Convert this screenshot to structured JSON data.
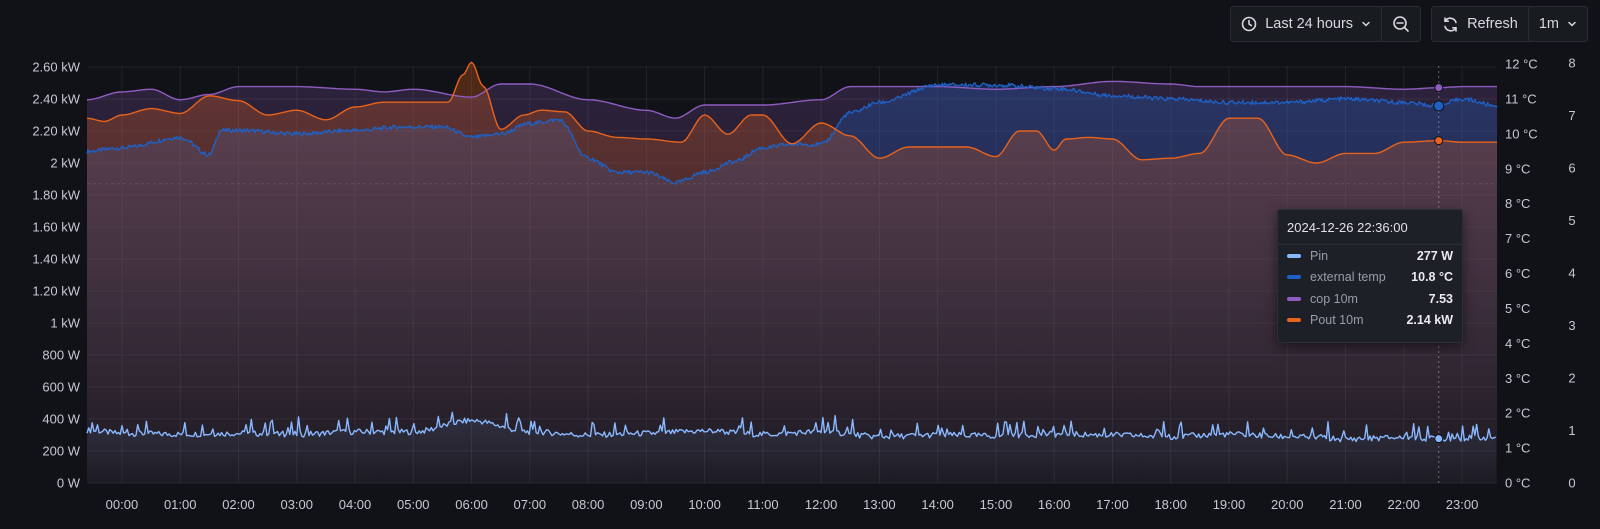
{
  "toolbar": {
    "time_range_label": "Last 24 hours",
    "refresh_label": "Refresh",
    "interval_label": "1m"
  },
  "tooltip": {
    "time": "2024-12-26 22:36:00",
    "rows": [
      {
        "name": "Pin",
        "value": "277 W",
        "color": "#8ab8ff"
      },
      {
        "name": "external temp",
        "value": "10.8 °C",
        "color": "#1f60c4"
      },
      {
        "name": "cop 10m",
        "value": "7.53",
        "color": "#8f5cc0"
      },
      {
        "name": "Pout 10m",
        "value": "2.14 kW",
        "color": "#e8631c"
      }
    ]
  },
  "chart_data": {
    "type": "line",
    "x_ticks": [
      "00:00",
      "01:00",
      "02:00",
      "03:00",
      "04:00",
      "05:00",
      "06:00",
      "07:00",
      "08:00",
      "09:00",
      "10:00",
      "11:00",
      "12:00",
      "13:00",
      "14:00",
      "15:00",
      "16:00",
      "17:00",
      "18:00",
      "19:00",
      "20:00",
      "21:00",
      "22:00",
      "23:00"
    ],
    "x_range_hours": [
      -0.6,
      23.6
    ],
    "y_left": {
      "unit": "W",
      "range": [
        0,
        2600
      ],
      "ticks": [
        "0 W",
        "200 W",
        "400 W",
        "600 W",
        "800 W",
        "1 kW",
        "1.20 kW",
        "1.40 kW",
        "1.60 kW",
        "1.80 kW",
        "2 kW",
        "2.20 kW",
        "2.40 kW",
        "2.60 kW"
      ]
    },
    "y_temp": {
      "unit": "°C",
      "range": [
        0,
        12
      ],
      "ticks": [
        "0 °C",
        "1 °C",
        "2 °C",
        "3 °C",
        "4 °C",
        "5 °C",
        "6 °C",
        "7 °C",
        "8 °C",
        "9 °C",
        "10 °C",
        "11 °C",
        "12 °C"
      ]
    },
    "y_cop": {
      "range": [
        0,
        8
      ],
      "ticks": [
        "0",
        "1",
        "2",
        "3",
        "4",
        "5",
        "6",
        "7",
        "8"
      ]
    },
    "series": [
      {
        "name": "Pin",
        "axis": "left",
        "color": "#8ab8ff",
        "x": [
          -0.6,
          0,
          1,
          2,
          3,
          4,
          5,
          6,
          7,
          8,
          9,
          10,
          11,
          12,
          13,
          14,
          15,
          16,
          17,
          18,
          19,
          20,
          21,
          22,
          22.6,
          23.6
        ],
        "y": [
          330,
          310,
          305,
          310,
          305,
          320,
          320,
          390,
          320,
          300,
          310,
          325,
          305,
          320,
          290,
          300,
          295,
          305,
          300,
          290,
          305,
          290,
          275,
          285,
          277,
          285
        ]
      },
      {
        "name": "external temp",
        "axis": "temp",
        "color": "#1f60c4",
        "x": [
          -0.6,
          0,
          1,
          1.5,
          1.7,
          2,
          3,
          4,
          4.8,
          5.5,
          6,
          6.5,
          7,
          7.5,
          8,
          8.5,
          9,
          9.5,
          10,
          10.5,
          11,
          11.5,
          12,
          12.5,
          13,
          14,
          15,
          16,
          17,
          18,
          19,
          20,
          21,
          22,
          22.6,
          23,
          23.6
        ],
        "y": [
          9.5,
          9.6,
          9.9,
          9.4,
          10.1,
          10.1,
          10.0,
          10.1,
          10.2,
          10.2,
          9.9,
          10.0,
          10.3,
          10.4,
          9.3,
          8.9,
          8.9,
          8.6,
          8.9,
          9.2,
          9.6,
          9.7,
          9.7,
          10.6,
          10.9,
          11.4,
          11.4,
          11.3,
          11.1,
          11.0,
          10.9,
          10.9,
          11.0,
          10.9,
          10.8,
          11.0,
          10.8
        ]
      },
      {
        "name": "cop 10m",
        "axis": "cop",
        "color": "#8f5cc0",
        "x": [
          -0.6,
          0,
          0.5,
          1,
          1.5,
          2,
          3,
          4,
          4.5,
          5,
          6,
          6.5,
          7,
          8,
          9,
          9.5,
          10,
          11,
          12,
          12.5,
          13,
          14,
          15,
          16,
          17,
          18,
          18.5,
          19,
          20,
          21,
          22,
          22.6,
          23,
          23.5
        ],
        "y": [
          7.3,
          7.45,
          7.5,
          7.3,
          7.4,
          7.55,
          7.55,
          7.5,
          7.45,
          7.5,
          7.35,
          7.6,
          7.6,
          7.3,
          7.1,
          6.95,
          7.2,
          7.2,
          7.3,
          7.55,
          7.55,
          7.55,
          7.5,
          7.55,
          7.65,
          7.6,
          7.55,
          7.55,
          7.55,
          7.55,
          7.5,
          7.53,
          7.55,
          7.55
        ]
      },
      {
        "name": "Pout 10m",
        "axis": "left",
        "color": "#e8631c",
        "x": [
          -0.6,
          -0.3,
          0,
          0.5,
          1,
          1.5,
          2,
          2.5,
          3,
          3.5,
          4,
          4.5,
          5,
          5.6,
          5.85,
          6,
          6.2,
          6.5,
          6.9,
          7.2,
          7.6,
          8,
          8.5,
          9,
          9.6,
          10,
          10.4,
          10.8,
          11,
          11.5,
          12,
          12.5,
          13,
          13.5,
          14,
          14.5,
          15,
          15.4,
          15.7,
          16,
          16.2,
          16.6,
          17,
          17.5,
          18,
          18.5,
          19,
          19.5,
          20,
          20.5,
          21,
          21.5,
          22,
          22.6,
          23,
          23.3
        ],
        "y": [
          2.28,
          2.26,
          2.3,
          2.34,
          2.31,
          2.42,
          2.39,
          2.3,
          2.33,
          2.27,
          2.35,
          2.38,
          2.38,
          2.38,
          2.55,
          2.63,
          2.48,
          2.21,
          2.3,
          2.33,
          2.32,
          2.2,
          2.16,
          2.15,
          2.13,
          2.3,
          2.18,
          2.3,
          2.3,
          2.12,
          2.25,
          2.17,
          2.03,
          2.1,
          2.1,
          2.1,
          2.04,
          2.2,
          2.2,
          2.08,
          2.15,
          2.16,
          2.15,
          2.02,
          2.03,
          2.06,
          2.28,
          2.28,
          2.05,
          2.0,
          2.06,
          2.06,
          2.13,
          2.14,
          2.13,
          2.13
        ]
      }
    ],
    "hover_x": 22.6,
    "threshold_dashed_kw": 1.87
  }
}
